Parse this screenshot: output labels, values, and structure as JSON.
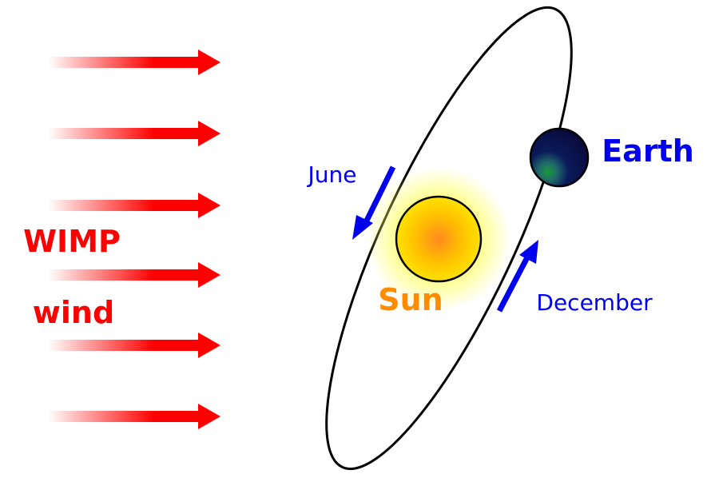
{
  "labels": {
    "wimp": "WIMP",
    "wind": "wind",
    "sun": "Sun",
    "earth": "Earth",
    "june": "June",
    "december": "December"
  },
  "colors": {
    "wind_arrow": "#ff0000",
    "wind_label": "#ff0000",
    "sun_label": "#ff8c00",
    "sun_core": "#ff9a1a",
    "sun_mid": "#ffd000",
    "sun_glow": "#ffff66",
    "earth_label": "#0000ee",
    "earth_dark": "#0a0a3c",
    "earth_land": "#1a9a3a",
    "month_label": "#0000ee",
    "orbit_arrow": "#0000ee",
    "orbit": "#000000"
  },
  "icons": {
    "wind_arrows": "right-arrow-icon",
    "orbit_arrows": "motion-arrow-icon"
  }
}
